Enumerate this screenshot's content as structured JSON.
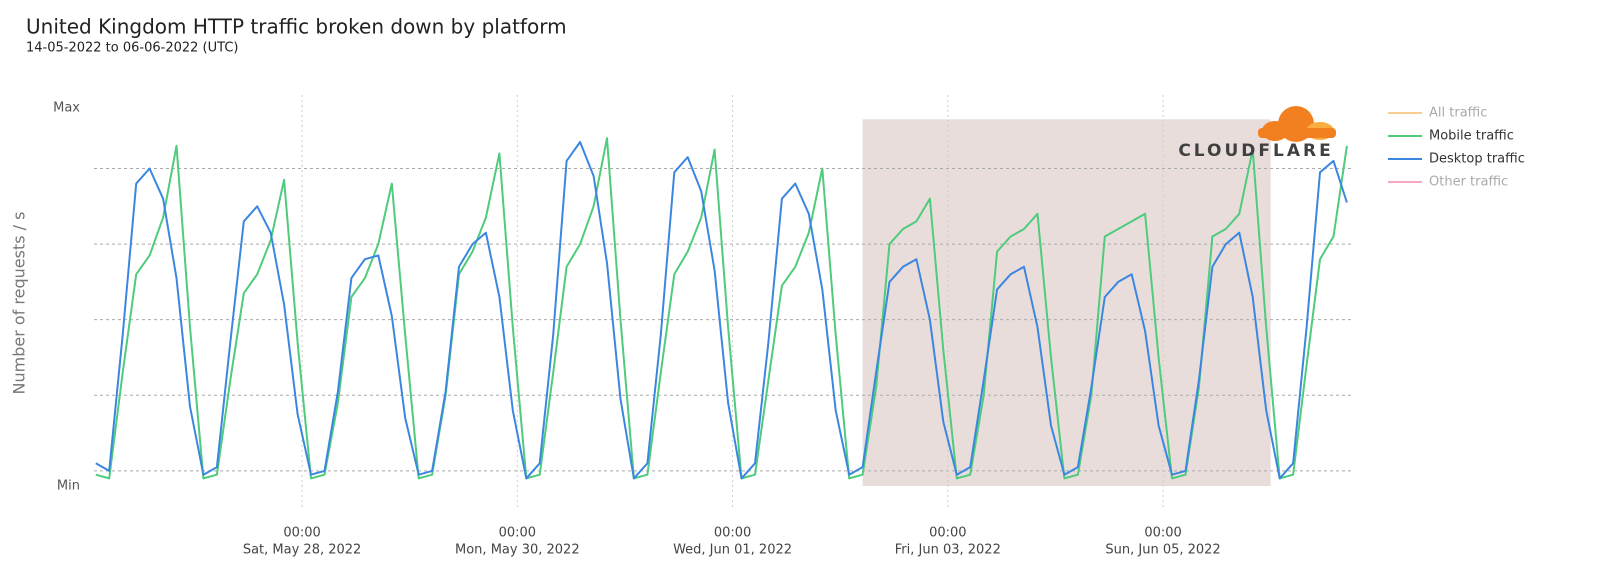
{
  "chart_data": {
    "type": "line",
    "title": "United Kingdom HTTP traffic broken down by platform",
    "subtitle": "14-05-2022 to 06-06-2022 (UTC)",
    "y_label": "Number of requests / s",
    "logo": "CLOUDFLARE",
    "x": [
      "2022-05-26 02:00",
      "2022-05-26 05:00",
      "2022-05-26 08:00",
      "2022-05-26 11:00",
      "2022-05-26 14:00",
      "2022-05-26 17:00",
      "2022-05-26 20:00",
      "2022-05-26 23:00",
      "2022-05-27 02:00",
      "2022-05-27 05:00",
      "2022-05-27 08:00",
      "2022-05-27 11:00",
      "2022-05-27 14:00",
      "2022-05-27 17:00",
      "2022-05-27 20:00",
      "2022-05-27 23:00",
      "2022-05-28 02:00",
      "2022-05-28 05:00",
      "2022-05-28 08:00",
      "2022-05-28 11:00",
      "2022-05-28 14:00",
      "2022-05-28 17:00",
      "2022-05-28 20:00",
      "2022-05-28 23:00",
      "2022-05-29 02:00",
      "2022-05-29 05:00",
      "2022-05-29 08:00",
      "2022-05-29 11:00",
      "2022-05-29 14:00",
      "2022-05-29 17:00",
      "2022-05-29 20:00",
      "2022-05-29 23:00",
      "2022-05-30 02:00",
      "2022-05-30 05:00",
      "2022-05-30 08:00",
      "2022-05-30 11:00",
      "2022-05-30 14:00",
      "2022-05-30 17:00",
      "2022-05-30 20:00",
      "2022-05-30 23:00",
      "2022-05-31 02:00",
      "2022-05-31 05:00",
      "2022-05-31 08:00",
      "2022-05-31 11:00",
      "2022-05-31 14:00",
      "2022-05-31 17:00",
      "2022-05-31 20:00",
      "2022-05-31 23:00",
      "2022-06-01 02:00",
      "2022-06-01 05:00",
      "2022-06-01 08:00",
      "2022-06-01 11:00",
      "2022-06-01 14:00",
      "2022-06-01 17:00",
      "2022-06-01 20:00",
      "2022-06-01 23:00",
      "2022-06-02 02:00",
      "2022-06-02 05:00",
      "2022-06-02 08:00",
      "2022-06-02 11:00",
      "2022-06-02 14:00",
      "2022-06-02 17:00",
      "2022-06-02 20:00",
      "2022-06-02 23:00",
      "2022-06-03 02:00",
      "2022-06-03 05:00",
      "2022-06-03 08:00",
      "2022-06-03 11:00",
      "2022-06-03 14:00",
      "2022-06-03 17:00",
      "2022-06-03 20:00",
      "2022-06-03 23:00",
      "2022-06-04 02:00",
      "2022-06-04 05:00",
      "2022-06-04 08:00",
      "2022-06-04 11:00",
      "2022-06-04 14:00",
      "2022-06-04 17:00",
      "2022-06-04 20:00",
      "2022-06-04 23:00",
      "2022-06-05 02:00",
      "2022-06-05 05:00",
      "2022-06-05 08:00",
      "2022-06-05 11:00",
      "2022-06-05 14:00",
      "2022-06-05 17:00",
      "2022-06-05 20:00",
      "2022-06-05 23:00",
      "2022-06-06 02:00",
      "2022-06-06 05:00",
      "2022-06-06 08:00",
      "2022-06-06 11:00",
      "2022-06-06 14:00",
      "2022-06-06 17:00"
    ],
    "series": [
      {
        "name": "Mobile traffic",
        "color": "#4fcb7c",
        "values": [
          3,
          2,
          30,
          56,
          61,
          71,
          90,
          42,
          2,
          3,
          28,
          51,
          56,
          65,
          81,
          38,
          2,
          3,
          22,
          50,
          55,
          64,
          80,
          40,
          2,
          3,
          24,
          56,
          62,
          71,
          88,
          42,
          2,
          3,
          30,
          58,
          64,
          74,
          92,
          44,
          2,
          3,
          30,
          56,
          62,
          71,
          89,
          42,
          2,
          3,
          28,
          53,
          58,
          67,
          84,
          40,
          2,
          3,
          26,
          64,
          68,
          70,
          76,
          36,
          2,
          3,
          24,
          62,
          66,
          68,
          72,
          34,
          2,
          3,
          24,
          66,
          68,
          70,
          72,
          34,
          2,
          3,
          26,
          66,
          68,
          72,
          89,
          42,
          2,
          3,
          32,
          60,
          66,
          90
        ]
      },
      {
        "name": "Desktop traffic",
        "color": "#3b87e0",
        "values": [
          6,
          4,
          40,
          80,
          84,
          76,
          55,
          21,
          3,
          5,
          38,
          70,
          74,
          67,
          48,
          19,
          3,
          4,
          25,
          55,
          60,
          61,
          45,
          18,
          3,
          4,
          25,
          58,
          64,
          67,
          50,
          20,
          2,
          6,
          40,
          86,
          91,
          82,
          59,
          23,
          2,
          6,
          40,
          83,
          87,
          78,
          57,
          22,
          2,
          6,
          38,
          76,
          80,
          72,
          52,
          20,
          3,
          5,
          30,
          54,
          58,
          60,
          44,
          17,
          3,
          5,
          28,
          52,
          56,
          58,
          42,
          16,
          3,
          5,
          26,
          50,
          54,
          56,
          41,
          16,
          3,
          4,
          28,
          58,
          64,
          67,
          50,
          20,
          2,
          6,
          42,
          83,
          86,
          75
        ]
      }
    ],
    "hidden_series": [
      {
        "name": "All traffic",
        "color": "#f7cf94"
      },
      {
        "name": "Other traffic",
        "color": "#f5a8c0"
      }
    ],
    "xlim": [
      "2022-05-26 01:36",
      "2022-06-06 18:08"
    ],
    "xticks": [
      {
        "value": "2022-05-28 00:00",
        "label": [
          "00:00",
          "Sat, May 28, 2022"
        ]
      },
      {
        "value": "2022-05-30 00:00",
        "label": [
          "00:00",
          "Mon, May 30, 2022"
        ]
      },
      {
        "value": "2022-06-01 00:00",
        "label": [
          "00:00",
          "Wed, Jun 01, 2022"
        ]
      },
      {
        "value": "2022-06-03 00:00",
        "label": [
          "00:00",
          "Fri, Jun 03, 2022"
        ]
      },
      {
        "value": "2022-06-05 00:00",
        "label": [
          "00:00",
          "Sun, Jun 05, 2022"
        ]
      }
    ],
    "ylim": [
      0,
      100
    ],
    "yticks": [
      {
        "value": 0,
        "label": "Min"
      },
      {
        "value": 100,
        "label": "Max"
      }
    ],
    "ygrid": [
      4,
      24,
      44,
      64,
      84
    ],
    "highlight": {
      "x": [
        "2022-06-02 05:00",
        "2022-06-06 00:00"
      ],
      "y": [
        0,
        97
      ],
      "color": "#e9dddc"
    },
    "legend": "right"
  }
}
